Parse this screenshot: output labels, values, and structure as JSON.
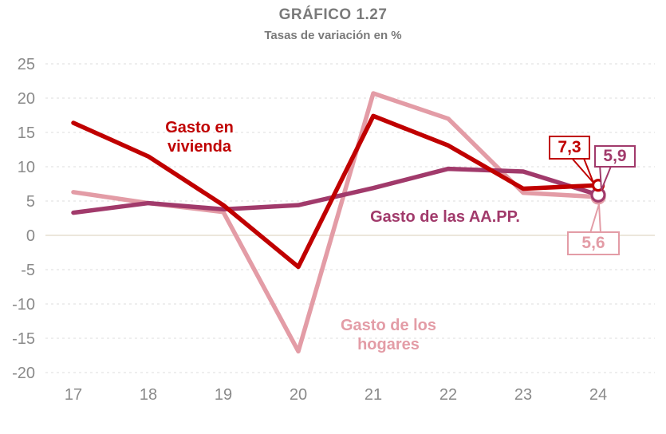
{
  "title": "GRÁFICO 1.27",
  "subtitle": "Tasas de variación en %",
  "chart_data": {
    "type": "line",
    "title": "GRÁFICO 1.27",
    "subtitle": "Tasas de variación en %",
    "x_labels": [
      "17",
      "18",
      "19",
      "20",
      "21",
      "22",
      "23",
      "24"
    ],
    "yticks": [
      25,
      20,
      15,
      10,
      5,
      0,
      -5,
      -10,
      -15,
      -20
    ],
    "ylim": [
      -20,
      25
    ],
    "xlabel": "",
    "ylabel": "Tasas de variación en %",
    "grid": "horizontal-dashed",
    "legend_position": "inline-labels",
    "grid_color": "#dcdcdc",
    "zero_line_color": "#e6dfd0",
    "tick_color": "#8a8a8a",
    "title_color": "#7a7a7a",
    "series": [
      {
        "name": "Gasto en vivienda",
        "label_lines": [
          "Gasto en",
          "vivienda"
        ],
        "color": "#c00000",
        "z": 3,
        "marker_r": 6.5,
        "values": [
          16.4,
          11.5,
          4.4,
          -4.6,
          17.4,
          13.1,
          6.8,
          7.3
        ],
        "end_label": "7,3"
      },
      {
        "name": "Gasto de los hogares",
        "label_lines": [
          "Gasto de los",
          "hogares"
        ],
        "color": "#e39ca6",
        "z": 1,
        "marker_r": 8,
        "values": [
          6.3,
          4.7,
          3.4,
          -16.9,
          20.7,
          17.0,
          6.2,
          5.6
        ],
        "end_label": "5,6"
      },
      {
        "name": "Gasto de las AA.PP.",
        "label_lines": [
          "Gasto de las AA.PP."
        ],
        "color": "#a13a6b",
        "z": 2,
        "marker_r": 8,
        "values": [
          3.3,
          4.7,
          3.8,
          4.4,
          6.9,
          9.7,
          9.3,
          5.9
        ],
        "end_label": "5,9"
      }
    ]
  }
}
